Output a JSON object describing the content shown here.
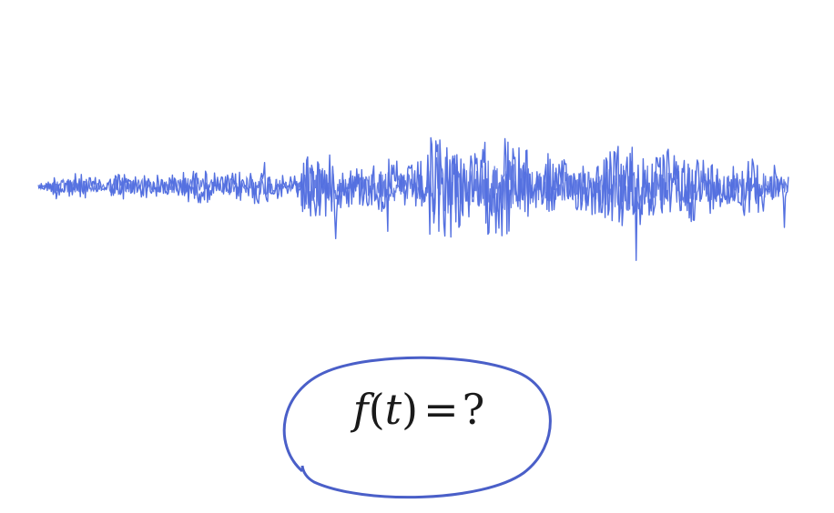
{
  "diagram": {
    "formula": {
      "function": "f",
      "open_paren": "(",
      "variable": "t",
      "close_paren": ")",
      "equals": "=",
      "unknown": "?"
    },
    "colors": {
      "waveform": "#5470e0",
      "ellipse": "#4a5fc8",
      "text": "#1a1a1a"
    }
  }
}
